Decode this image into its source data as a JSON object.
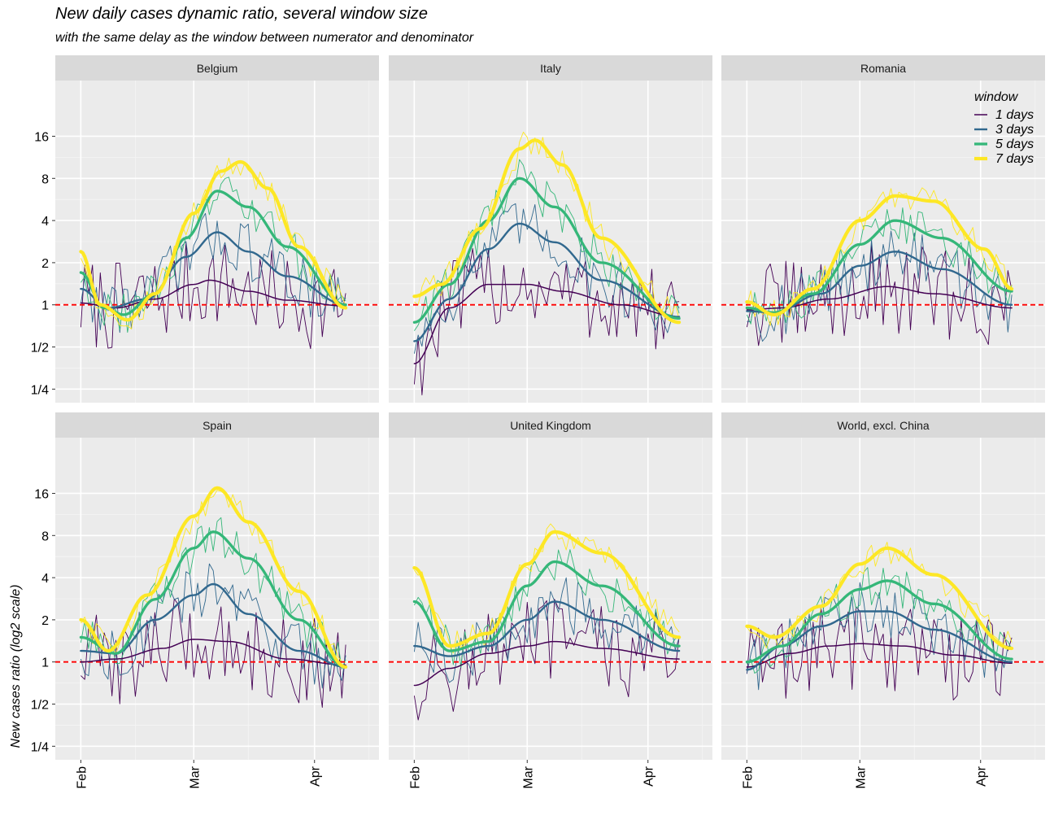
{
  "title": "New daily cases dynamic ratio, several window size",
  "subtitle": "with the same delay as the window between numerator and denominator",
  "chart_data": {
    "type": "line",
    "y_scale": "log2",
    "ylabel": "New cases ratio (log2 scale)",
    "xlabel": "",
    "x_ticks": [
      "Feb",
      "Mar",
      "Apr"
    ],
    "y_ticks": [
      "1/4",
      "1/2",
      "1",
      "2",
      "4",
      "8",
      "16"
    ],
    "ylim": [
      0.2,
      40
    ],
    "xlim": [
      "2020-01-29",
      "2020-04-14"
    ],
    "reference_line": {
      "y": 1,
      "color": "#ff0000",
      "style": "dashed"
    },
    "legend": {
      "title": "window",
      "placement": "top-right",
      "entries": [
        {
          "label": "1 days",
          "color": "#440154"
        },
        {
          "label": "3 days",
          "color": "#31688e"
        },
        {
          "label": "5 days",
          "color": "#35b779"
        },
        {
          "label": "7 days",
          "color": "#fde725"
        }
      ]
    },
    "panels": [
      {
        "name": "Belgium",
        "smooth": {
          "1 days": [
            [
              "2020-02-01",
              1.03
            ],
            [
              "2020-02-10",
              0.95
            ],
            [
              "2020-02-20",
              1.1
            ],
            [
              "2020-03-01",
              1.4
            ],
            [
              "2020-03-05",
              1.5
            ],
            [
              "2020-03-15",
              1.25
            ],
            [
              "2020-03-25",
              1.08
            ],
            [
              "2020-04-09",
              0.98
            ]
          ],
          "3 days": [
            [
              "2020-02-01",
              1.3
            ],
            [
              "2020-02-08",
              0.95
            ],
            [
              "2020-02-18",
              1.1
            ],
            [
              "2020-02-28",
              2.2
            ],
            [
              "2020-03-07",
              3.3
            ],
            [
              "2020-03-15",
              2.4
            ],
            [
              "2020-03-25",
              1.6
            ],
            [
              "2020-04-09",
              1.0
            ]
          ],
          "5 days": [
            [
              "2020-02-01",
              1.7
            ],
            [
              "2020-02-07",
              0.95
            ],
            [
              "2020-02-12",
              0.85
            ],
            [
              "2020-02-20",
              1.2
            ],
            [
              "2020-02-28",
              3.0
            ],
            [
              "2020-03-07",
              6.5
            ],
            [
              "2020-03-15",
              5.0
            ],
            [
              "2020-03-25",
              2.6
            ],
            [
              "2020-04-09",
              1.0
            ]
          ],
          "7 days": [
            [
              "2020-02-01",
              2.4
            ],
            [
              "2020-02-06",
              1.0
            ],
            [
              "2020-02-13",
              0.78
            ],
            [
              "2020-02-20",
              1.2
            ],
            [
              "2020-03-01",
              4.5
            ],
            [
              "2020-03-08",
              9.0
            ],
            [
              "2020-03-13",
              10.5
            ],
            [
              "2020-03-20",
              6.8
            ],
            [
              "2020-03-28",
              2.6
            ],
            [
              "2020-04-09",
              0.95
            ]
          ]
        }
      },
      {
        "name": "Italy",
        "smooth": {
          "1 days": [
            [
              "2020-02-01",
              0.38
            ],
            [
              "2020-02-10",
              0.95
            ],
            [
              "2020-02-20",
              1.4
            ],
            [
              "2020-03-01",
              1.4
            ],
            [
              "2020-03-10",
              1.25
            ],
            [
              "2020-03-25",
              1.0
            ],
            [
              "2020-04-09",
              0.82
            ]
          ],
          "3 days": [
            [
              "2020-02-01",
              0.55
            ],
            [
              "2020-02-10",
              1.1
            ],
            [
              "2020-02-20",
              2.5
            ],
            [
              "2020-02-28",
              3.8
            ],
            [
              "2020-03-08",
              2.8
            ],
            [
              "2020-03-20",
              1.5
            ],
            [
              "2020-04-09",
              0.82
            ]
          ],
          "5 days": [
            [
              "2020-02-01",
              0.75
            ],
            [
              "2020-02-10",
              1.4
            ],
            [
              "2020-02-20",
              4.0
            ],
            [
              "2020-02-28",
              8.0
            ],
            [
              "2020-03-08",
              5.0
            ],
            [
              "2020-03-20",
              2.0
            ],
            [
              "2020-04-09",
              0.8
            ]
          ],
          "7 days": [
            [
              "2020-02-01",
              1.15
            ],
            [
              "2020-02-08",
              1.4
            ],
            [
              "2020-02-18",
              3.5
            ],
            [
              "2020-02-28",
              13.0
            ],
            [
              "2020-03-03",
              15.0
            ],
            [
              "2020-03-10",
              10.0
            ],
            [
              "2020-03-20",
              3.0
            ],
            [
              "2020-04-09",
              0.75
            ]
          ]
        }
      },
      {
        "name": "Romania",
        "smooth": {
          "1 days": [
            [
              "2020-02-01",
              0.92
            ],
            [
              "2020-02-10",
              0.95
            ],
            [
              "2020-02-22",
              1.1
            ],
            [
              "2020-03-08",
              1.35
            ],
            [
              "2020-03-20",
              1.2
            ],
            [
              "2020-04-09",
              0.95
            ]
          ],
          "3 days": [
            [
              "2020-02-01",
              0.9
            ],
            [
              "2020-02-08",
              0.88
            ],
            [
              "2020-02-20",
              1.2
            ],
            [
              "2020-03-01",
              1.9
            ],
            [
              "2020-03-10",
              2.4
            ],
            [
              "2020-03-22",
              1.8
            ],
            [
              "2020-04-09",
              1.0
            ]
          ],
          "5 days": [
            [
              "2020-02-01",
              0.95
            ],
            [
              "2020-02-08",
              0.88
            ],
            [
              "2020-02-18",
              1.2
            ],
            [
              "2020-03-01",
              2.7
            ],
            [
              "2020-03-10",
              4.0
            ],
            [
              "2020-03-22",
              3.0
            ],
            [
              "2020-04-09",
              1.25
            ]
          ],
          "7 days": [
            [
              "2020-02-01",
              1.05
            ],
            [
              "2020-02-08",
              0.85
            ],
            [
              "2020-02-18",
              1.3
            ],
            [
              "2020-03-01",
              4.0
            ],
            [
              "2020-03-10",
              6.0
            ],
            [
              "2020-03-20",
              5.5
            ],
            [
              "2020-04-02",
              2.5
            ],
            [
              "2020-04-09",
              1.3
            ]
          ]
        }
      },
      {
        "name": "Spain",
        "smooth": {
          "1 days": [
            [
              "2020-02-01",
              1.0
            ],
            [
              "2020-02-10",
              1.05
            ],
            [
              "2020-02-22",
              1.25
            ],
            [
              "2020-03-01",
              1.45
            ],
            [
              "2020-03-10",
              1.4
            ],
            [
              "2020-03-25",
              1.05
            ],
            [
              "2020-04-09",
              0.95
            ]
          ],
          "3 days": [
            [
              "2020-02-01",
              1.2
            ],
            [
              "2020-02-10",
              1.15
            ],
            [
              "2020-02-20",
              2.0
            ],
            [
              "2020-03-01",
              3.0
            ],
            [
              "2020-03-06",
              3.6
            ],
            [
              "2020-03-15",
              2.2
            ],
            [
              "2020-03-28",
              1.2
            ],
            [
              "2020-04-09",
              0.92
            ]
          ],
          "5 days": [
            [
              "2020-02-01",
              1.5
            ],
            [
              "2020-02-10",
              1.15
            ],
            [
              "2020-02-20",
              2.8
            ],
            [
              "2020-03-01",
              6.5
            ],
            [
              "2020-03-06",
              8.5
            ],
            [
              "2020-03-15",
              5.5
            ],
            [
              "2020-03-28",
              2.0
            ],
            [
              "2020-04-09",
              0.92
            ]
          ],
          "7 days": [
            [
              "2020-02-01",
              2.0
            ],
            [
              "2020-02-08",
              1.2
            ],
            [
              "2020-02-18",
              3.0
            ],
            [
              "2020-03-01",
              11.0
            ],
            [
              "2020-03-07",
              17.5
            ],
            [
              "2020-03-15",
              10.0
            ],
            [
              "2020-03-28",
              3.2
            ],
            [
              "2020-04-09",
              0.92
            ]
          ]
        }
      },
      {
        "name": "United Kingdom",
        "smooth": {
          "1 days": [
            [
              "2020-02-01",
              0.68
            ],
            [
              "2020-02-10",
              0.9
            ],
            [
              "2020-02-20",
              1.15
            ],
            [
              "2020-03-01",
              1.3
            ],
            [
              "2020-03-08",
              1.4
            ],
            [
              "2020-03-20",
              1.25
            ],
            [
              "2020-04-09",
              1.05
            ]
          ],
          "3 days": [
            [
              "2020-02-01",
              1.3
            ],
            [
              "2020-02-10",
              1.1
            ],
            [
              "2020-02-20",
              1.3
            ],
            [
              "2020-03-01",
              2.0
            ],
            [
              "2020-03-08",
              2.7
            ],
            [
              "2020-03-20",
              2.0
            ],
            [
              "2020-04-09",
              1.2
            ]
          ],
          "5 days": [
            [
              "2020-02-01",
              2.7
            ],
            [
              "2020-02-10",
              1.2
            ],
            [
              "2020-02-20",
              1.4
            ],
            [
              "2020-03-01",
              3.5
            ],
            [
              "2020-03-08",
              5.2
            ],
            [
              "2020-03-20",
              3.5
            ],
            [
              "2020-04-09",
              1.3
            ]
          ],
          "7 days": [
            [
              "2020-02-01",
              4.7
            ],
            [
              "2020-02-10",
              1.3
            ],
            [
              "2020-02-20",
              1.6
            ],
            [
              "2020-03-01",
              5.0
            ],
            [
              "2020-03-08",
              8.5
            ],
            [
              "2020-03-20",
              6.0
            ],
            [
              "2020-04-09",
              1.5
            ]
          ]
        }
      },
      {
        "name": "World, excl. China",
        "smooth": {
          "1 days": [
            [
              "2020-02-01",
              0.92
            ],
            [
              "2020-02-12",
              1.15
            ],
            [
              "2020-02-22",
              1.3
            ],
            [
              "2020-03-01",
              1.35
            ],
            [
              "2020-03-12",
              1.3
            ],
            [
              "2020-03-25",
              1.12
            ],
            [
              "2020-04-09",
              0.98
            ]
          ],
          "3 days": [
            [
              "2020-02-01",
              0.88
            ],
            [
              "2020-02-10",
              1.3
            ],
            [
              "2020-02-20",
              1.8
            ],
            [
              "2020-03-01",
              2.3
            ],
            [
              "2020-03-08",
              2.3
            ],
            [
              "2020-03-20",
              1.7
            ],
            [
              "2020-04-09",
              1.0
            ]
          ],
          "5 days": [
            [
              "2020-02-01",
              1.0
            ],
            [
              "2020-02-10",
              1.3
            ],
            [
              "2020-02-20",
              2.2
            ],
            [
              "2020-03-01",
              3.3
            ],
            [
              "2020-03-08",
              3.8
            ],
            [
              "2020-03-20",
              2.6
            ],
            [
              "2020-04-09",
              1.05
            ]
          ],
          "7 days": [
            [
              "2020-02-01",
              1.8
            ],
            [
              "2020-02-08",
              1.5
            ],
            [
              "2020-02-20",
              2.5
            ],
            [
              "2020-03-01",
              5.0
            ],
            [
              "2020-03-08",
              6.5
            ],
            [
              "2020-03-20",
              4.2
            ],
            [
              "2020-04-09",
              1.25
            ]
          ]
        }
      }
    ]
  }
}
